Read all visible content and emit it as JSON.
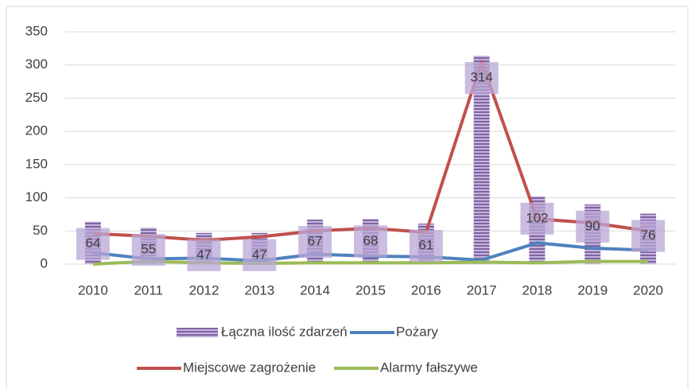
{
  "chart_data": {
    "type": "combo",
    "categories": [
      "2010",
      "2011",
      "2012",
      "2013",
      "2014",
      "2015",
      "2016",
      "2017",
      "2018",
      "2019",
      "2020"
    ],
    "series": [
      {
        "name": "Łączna ilość zdarzeń",
        "type": "bar",
        "color": "#8064a2",
        "values": [
          64,
          55,
          47,
          47,
          67,
          68,
          61,
          314,
          102,
          90,
          76
        ]
      },
      {
        "name": "Pożary",
        "type": "line",
        "color": "#4f81bd",
        "values": [
          17,
          8,
          9,
          5,
          15,
          12,
          11,
          6,
          32,
          24,
          21
        ]
      },
      {
        "name": "Miejscowe zagrożenie",
        "type": "line",
        "color": "#c0504d",
        "values": [
          46,
          42,
          36,
          41,
          50,
          54,
          48,
          305,
          68,
          62,
          50
        ]
      },
      {
        "name": "Alarmy fałszywe",
        "type": "line",
        "color": "#9bbb59",
        "values": [
          0,
          4,
          2,
          1,
          2,
          2,
          2,
          3,
          2,
          4,
          4
        ]
      }
    ],
    "ylim": [
      0,
      350
    ],
    "yticks": [
      0,
      50,
      100,
      150,
      200,
      250,
      300,
      350
    ],
    "grid": true,
    "legend": "bottom"
  }
}
